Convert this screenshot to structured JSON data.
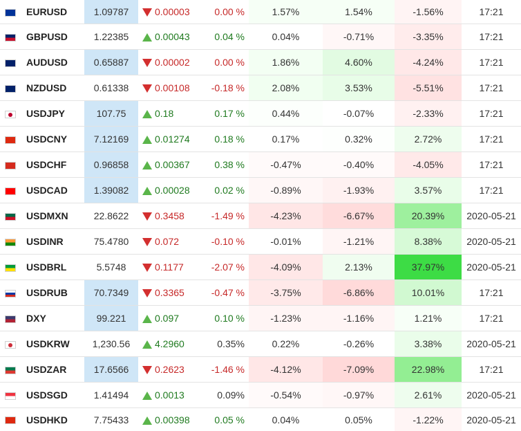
{
  "rows": [
    {
      "symbol": "EURUSD",
      "flag": "eu-flag-icon",
      "flag_colors": [
        "#003399"
      ],
      "price": "1.09787",
      "price_hl": true,
      "change": "0.00003",
      "dir": "down",
      "pct": "0.00 %",
      "pct_dir": "down",
      "p1": "1.57%",
      "p1_bg": "#f6fff6",
      "p2": "1.54%",
      "p2_bg": "#f6fff6",
      "p3": "-1.56%",
      "p3_bg": "#fff4f4",
      "time": "17:21"
    },
    {
      "symbol": "GBPUSD",
      "flag": "uk-flag-icon",
      "flag_colors": [
        "#012169",
        "#c8102e"
      ],
      "price": "1.22385",
      "price_hl": false,
      "change": "0.00043",
      "dir": "up",
      "pct": "0.04 %",
      "pct_dir": "up",
      "p1": "0.04%",
      "p1_bg": "#ffffff",
      "p2": "-0.71%",
      "p2_bg": "#fff7f7",
      "p3": "-3.35%",
      "p3_bg": "#ffecec",
      "time": "17:21"
    },
    {
      "symbol": "AUDUSD",
      "flag": "australia-flag-icon",
      "flag_colors": [
        "#012169"
      ],
      "price": "0.65887",
      "price_hl": true,
      "change": "0.00002",
      "dir": "down",
      "pct": "0.00 %",
      "pct_dir": "down",
      "p1": "1.86%",
      "p1_bg": "#f3fff3",
      "p2": "4.60%",
      "p2_bg": "#e2fbe2",
      "p3": "-4.24%",
      "p3_bg": "#ffe8e8",
      "time": "17:21"
    },
    {
      "symbol": "NZDUSD",
      "flag": "new-zealand-flag-icon",
      "flag_colors": [
        "#012169"
      ],
      "price": "0.61338",
      "price_hl": false,
      "change": "0.00108",
      "dir": "down",
      "pct": "-0.18 %",
      "pct_dir": "down",
      "p1": "2.08%",
      "p1_bg": "#f1fff1",
      "p2": "3.53%",
      "p2_bg": "#e8fde8",
      "p3": "-5.51%",
      "p3_bg": "#ffe2e2",
      "time": "17:21"
    },
    {
      "symbol": "USDJPY",
      "flag": "japan-flag-icon",
      "flag_colors": [
        "#ffffff",
        "#bc002d"
      ],
      "price": "107.75",
      "price_hl": true,
      "change": "0.18",
      "dir": "up",
      "pct": "0.17 %",
      "pct_dir": "up",
      "p1": "0.44%",
      "p1_bg": "#fcfffc",
      "p2": "-0.07%",
      "p2_bg": "#ffffff",
      "p3": "-2.33%",
      "p3_bg": "#fff1f1",
      "time": "17:21"
    },
    {
      "symbol": "USDCNY",
      "flag": "china-flag-icon",
      "flag_colors": [
        "#de2910"
      ],
      "price": "7.12169",
      "price_hl": true,
      "change": "0.01274",
      "dir": "up",
      "pct": "0.18 %",
      "pct_dir": "up",
      "p1": "0.17%",
      "p1_bg": "#ffffff",
      "p2": "0.32%",
      "p2_bg": "#fdfffd",
      "p3": "2.72%",
      "p3_bg": "#eefdee",
      "time": "17:21"
    },
    {
      "symbol": "USDCHF",
      "flag": "switzerland-flag-icon",
      "flag_colors": [
        "#d52b1e"
      ],
      "price": "0.96858",
      "price_hl": true,
      "change": "0.00367",
      "dir": "up",
      "pct": "0.38 %",
      "pct_dir": "up",
      "p1": "-0.47%",
      "p1_bg": "#fffafa",
      "p2": "-0.40%",
      "p2_bg": "#fffafa",
      "p3": "-4.05%",
      "p3_bg": "#ffe9e9",
      "time": "17:21"
    },
    {
      "symbol": "USDCAD",
      "flag": "canada-flag-icon",
      "flag_colors": [
        "#ff0000"
      ],
      "price": "1.39082",
      "price_hl": true,
      "change": "0.00028",
      "dir": "up",
      "pct": "0.02 %",
      "pct_dir": "up",
      "p1": "-0.89%",
      "p1_bg": "#fff7f7",
      "p2": "-1.93%",
      "p2_bg": "#fff1f1",
      "p3": "3.57%",
      "p3_bg": "#e9fde9",
      "time": "17:21"
    },
    {
      "symbol": "USDMXN",
      "flag": "mexico-flag-icon",
      "flag_colors": [
        "#006847",
        "#ce1126"
      ],
      "price": "22.8622",
      "price_hl": false,
      "change": "0.3458",
      "dir": "down",
      "pct": "-1.49 %",
      "pct_dir": "down",
      "p1": "-4.23%",
      "p1_bg": "#ffe6e6",
      "p2": "-6.67%",
      "p2_bg": "#ffdcdc",
      "p3": "20.39%",
      "p3_bg": "#9ef09e",
      "time": "2020-05-21"
    },
    {
      "symbol": "USDINR",
      "flag": "india-flag-icon",
      "flag_colors": [
        "#ff9933",
        "#138808"
      ],
      "price": "75.4780",
      "price_hl": false,
      "change": "0.072",
      "dir": "down",
      "pct": "-0.10 %",
      "pct_dir": "down",
      "p1": "-0.01%",
      "p1_bg": "#ffffff",
      "p2": "-1.21%",
      "p2_bg": "#fff5f5",
      "p3": "8.38%",
      "p3_bg": "#d7fad7",
      "time": "2020-05-21"
    },
    {
      "symbol": "USDBRL",
      "flag": "brazil-flag-icon",
      "flag_colors": [
        "#009c3b",
        "#ffdf00"
      ],
      "price": "5.5748",
      "price_hl": false,
      "change": "0.1177",
      "dir": "down",
      "pct": "-2.07 %",
      "pct_dir": "down",
      "p1": "-4.09%",
      "p1_bg": "#ffe7e7",
      "p2": "2.13%",
      "p2_bg": "#f0fdf0",
      "p3": "37.97%",
      "p3_bg": "#3ddc45",
      "time": "2020-05-21"
    },
    {
      "symbol": "USDRUB",
      "flag": "russia-flag-icon",
      "flag_colors": [
        "#ffffff",
        "#0039a6",
        "#d52b1e"
      ],
      "price": "70.7349",
      "price_hl": true,
      "change": "0.3365",
      "dir": "down",
      "pct": "-0.47 %",
      "pct_dir": "down",
      "p1": "-3.75%",
      "p1_bg": "#ffe9e9",
      "p2": "-6.86%",
      "p2_bg": "#ffdada",
      "p3": "10.01%",
      "p3_bg": "#d1f9d1",
      "time": "17:21"
    },
    {
      "symbol": "DXY",
      "flag": "usa-flag-icon",
      "flag_colors": [
        "#3c3b6e",
        "#b22234"
      ],
      "price": "99.221",
      "price_hl": true,
      "change": "0.097",
      "dir": "up",
      "pct": "0.10 %",
      "pct_dir": "up",
      "p1": "-1.23%",
      "p1_bg": "#fff5f5",
      "p2": "-1.16%",
      "p2_bg": "#fff5f5",
      "p3": "1.21%",
      "p3_bg": "#f7fff7",
      "time": "17:21"
    },
    {
      "symbol": "USDKRW",
      "flag": "south-korea-flag-icon",
      "flag_colors": [
        "#ffffff",
        "#cd2e3a"
      ],
      "price": "1,230.56",
      "price_hl": false,
      "change": "4.2960",
      "dir": "up",
      "pct": "0.35%",
      "pct_dir": "flat",
      "p1": "0.22%",
      "p1_bg": "#ffffff",
      "p2": "-0.26%",
      "p2_bg": "#ffffff",
      "p3": "3.38%",
      "p3_bg": "#eafdea",
      "time": "2020-05-21"
    },
    {
      "symbol": "USDZAR",
      "flag": "south-africa-flag-icon",
      "flag_colors": [
        "#007a4d",
        "#de3831"
      ],
      "price": "17.6566",
      "price_hl": true,
      "change": "0.2623",
      "dir": "down",
      "pct": "-1.46 %",
      "pct_dir": "down",
      "p1": "-4.12%",
      "p1_bg": "#ffe7e7",
      "p2": "-7.09%",
      "p2_bg": "#ffd9d9",
      "p3": "22.98%",
      "p3_bg": "#93ee93",
      "time": "17:21"
    },
    {
      "symbol": "USDSGD",
      "flag": "singapore-flag-icon",
      "flag_colors": [
        "#ef3340",
        "#ffffff"
      ],
      "price": "1.41494",
      "price_hl": false,
      "change": "0.0013",
      "dir": "up",
      "pct": "0.09%",
      "pct_dir": "flat",
      "p1": "-0.54%",
      "p1_bg": "#fffafa",
      "p2": "-0.97%",
      "p2_bg": "#fff7f7",
      "p3": "2.61%",
      "p3_bg": "#eefdee",
      "time": "2020-05-21"
    },
    {
      "symbol": "USDHKD",
      "flag": "hong-kong-flag-icon",
      "flag_colors": [
        "#de2910"
      ],
      "price": "7.75433",
      "price_hl": false,
      "change": "0.00398",
      "dir": "up",
      "pct": "0.05 %",
      "pct_dir": "up",
      "p1": "0.04%",
      "p1_bg": "#ffffff",
      "p2": "0.05%",
      "p2_bg": "#ffffff",
      "p3": "-1.22%",
      "p3_bg": "#fff5f5",
      "time": "2020-05-21"
    }
  ]
}
